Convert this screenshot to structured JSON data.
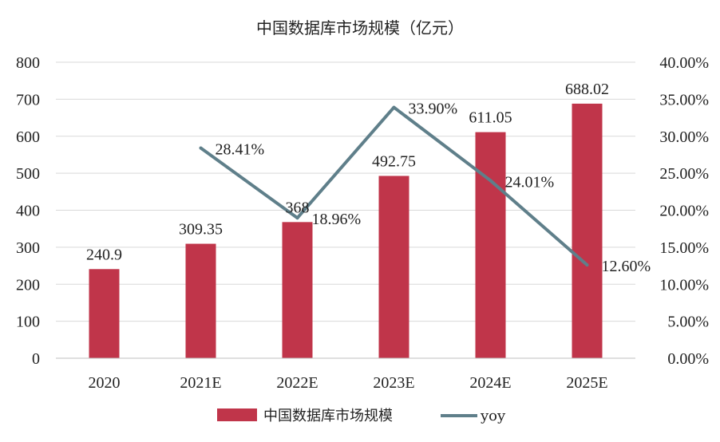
{
  "chart_data": {
    "type": "bar",
    "title": "中国数据库市场规模（亿元）",
    "categories": [
      "2020",
      "2021E",
      "2022E",
      "2023E",
      "2024E",
      "2025E"
    ],
    "series": [
      {
        "name": "中国数据库市场规模",
        "type": "bar",
        "axis": "left",
        "color": "#c0354a",
        "values": [
          240.9,
          309.35,
          368,
          492.75,
          611.05,
          688.02
        ],
        "labels": [
          "240.9",
          "309.35",
          "368",
          "492.75",
          "611.05",
          "688.02"
        ]
      },
      {
        "name": "yoy",
        "type": "line",
        "axis": "right",
        "color": "#5f7f8a",
        "values": [
          null,
          28.41,
          18.96,
          33.9,
          24.01,
          12.6
        ],
        "labels": [
          "",
          "28.41%",
          "18.96%",
          "33.90%",
          "24.01%",
          "12.60%"
        ]
      }
    ],
    "y_left": {
      "min": 0,
      "max": 800,
      "ticks": [
        "0",
        "100",
        "200",
        "300",
        "400",
        "500",
        "600",
        "700",
        "800"
      ]
    },
    "y_right": {
      "min": 0,
      "max": 40,
      "unit": "%",
      "ticks": [
        "0.00%",
        "5.00%",
        "10.00%",
        "15.00%",
        "20.00%",
        "25.00%",
        "30.00%",
        "35.00%",
        "40.00%"
      ]
    },
    "grid": true,
    "legend_position": "bottom"
  }
}
